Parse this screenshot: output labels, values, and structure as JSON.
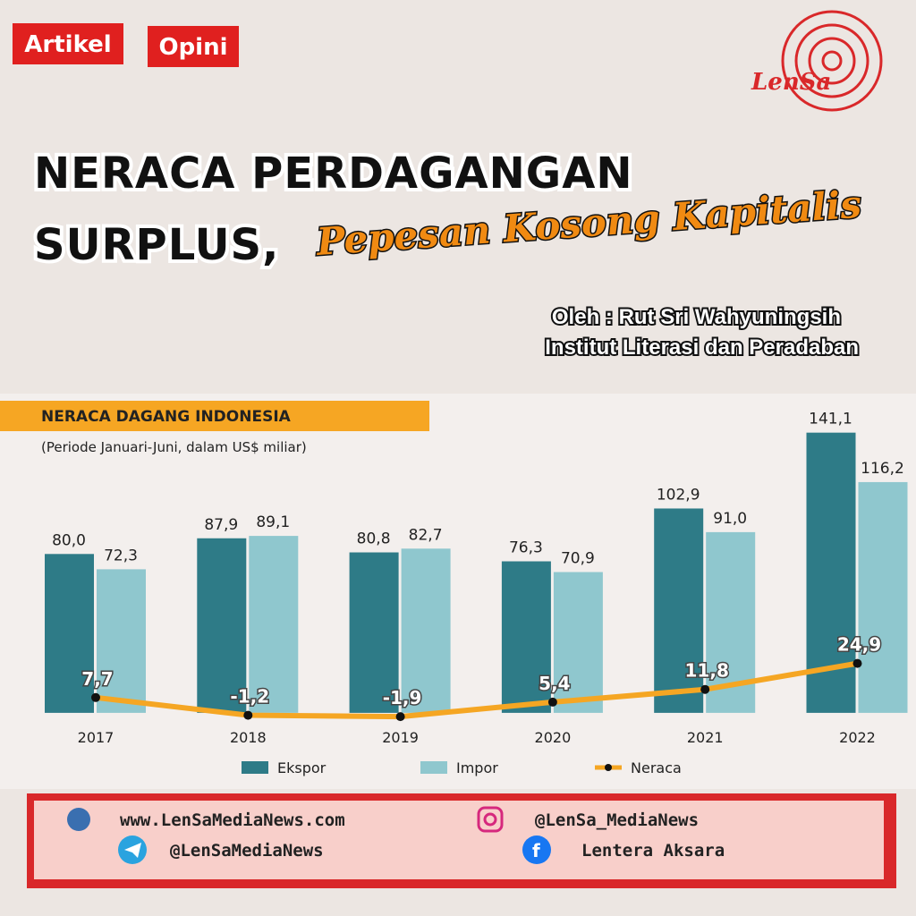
{
  "tags": [
    "Artikel",
    "Opini"
  ],
  "logo": "LenSa",
  "headline": {
    "line1": "NERACA PERDAGANGAN",
    "line2": "SURPLUS,",
    "script": "Pepesan Kosong Kapitalis"
  },
  "byline": [
    "Oleh : Rut Sri Wahyuningsih",
    "Institut Literasi dan Peradaban"
  ],
  "chart_data": {
    "type": "bar",
    "title": "NERACA DAGANG INDONESIA",
    "subtitle": "(Periode Januari-Juni, dalam US$ miliar)",
    "categories": [
      "2017",
      "2018",
      "2019",
      "2020",
      "2021",
      "2022"
    ],
    "series": [
      {
        "name": "Ekspor",
        "color": "#2e7b87",
        "values": [
          80.0,
          87.9,
          80.8,
          76.3,
          102.9,
          141.1
        ],
        "value_labels": [
          "80,0",
          "87,9",
          "80,8",
          "76,3",
          "102,9",
          "141,1"
        ]
      },
      {
        "name": "Impor",
        "color": "#8fc7ce",
        "values": [
          72.3,
          89.1,
          82.7,
          70.9,
          91.0,
          116.2
        ],
        "value_labels": [
          "72,3",
          "89,1",
          "82,7",
          "70,9",
          "91,0",
          "116,2"
        ]
      },
      {
        "name": "Neraca",
        "type": "line",
        "color": "#f5a623",
        "values": [
          7.7,
          -1.2,
          -1.9,
          5.4,
          11.8,
          24.9
        ],
        "value_labels": [
          "7,7",
          "-1,2",
          "-1,9",
          "5,4",
          "11,8",
          "24,9"
        ]
      }
    ],
    "ylim": [
      -5,
      145
    ]
  },
  "footer": {
    "website": "www.LenSaMediaNews.com",
    "instagram": "@LenSa_MediaNews",
    "telegram": "@LenSaMediaNews",
    "facebook": "Lentera Aksara"
  }
}
